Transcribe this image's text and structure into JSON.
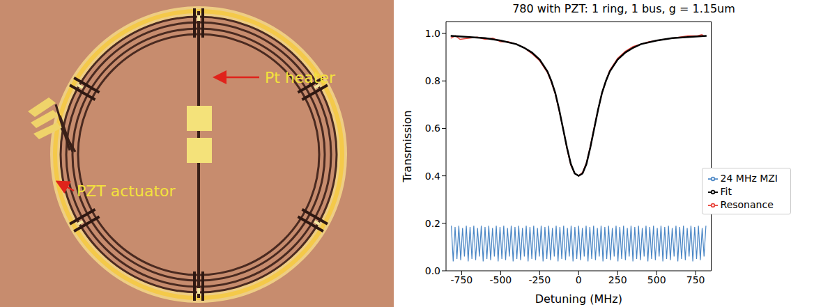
{
  "photo": {
    "labels": [
      "Pt heater",
      "PZT actuator"
    ]
  },
  "chart_data": {
    "type": "line",
    "title": "780 with PZT: 1 ring, 1 bus, g = 1.15um",
    "x_label": "Detuning (MHz)",
    "y_label": "Transmission",
    "xlim": [
      -850,
      850
    ],
    "ylim": [
      0,
      1.05
    ],
    "xticks": [
      -750,
      -500,
      -250,
      0,
      250,
      500,
      750
    ],
    "yticks": [
      {
        "value": 0,
        "label": "0.0"
      },
      0.2,
      0.4,
      0.6,
      0.8,
      {
        "value": 1,
        "label": "1.0"
      }
    ],
    "legend": "right",
    "series": [
      {
        "name": "Resonance",
        "color": "#e8453c",
        "x": [
          -820,
          -790,
          -760,
          -700,
          -650,
          -600,
          -550,
          -500,
          -450,
          -400,
          -350,
          -300,
          -250,
          -200,
          -175,
          -150,
          -125,
          -100,
          -75,
          -50,
          -25,
          0,
          25,
          50,
          75,
          100,
          125,
          150,
          175,
          200,
          250,
          300,
          350,
          400,
          450,
          500,
          550,
          600,
          650,
          700,
          760,
          790,
          800
        ],
        "values": [
          0.98,
          0.99,
          0.975,
          0.98,
          0.985,
          0.975,
          0.98,
          0.965,
          0.965,
          0.955,
          0.94,
          0.915,
          0.885,
          0.835,
          0.795,
          0.745,
          0.675,
          0.6,
          0.515,
          0.445,
          0.41,
          0.4,
          0.415,
          0.455,
          0.525,
          0.605,
          0.68,
          0.75,
          0.8,
          0.845,
          0.895,
          0.925,
          0.945,
          0.955,
          0.965,
          0.97,
          0.975,
          0.98,
          0.985,
          0.99,
          0.99,
          0.995,
          0.99
        ]
      },
      {
        "name": "24 MHz MZI",
        "color": "#4a86c5",
        "x": [
          -816,
          -804,
          -792,
          -780,
          -768,
          -756,
          -744,
          -732,
          -720,
          -708,
          -696,
          -684,
          -672,
          -660,
          -648,
          -636,
          -624,
          -612,
          -600,
          -588,
          -576,
          -564,
          -552,
          -540,
          -528,
          -516,
          -504,
          -492,
          -480,
          -468,
          -456,
          -444,
          -432,
          -420,
          -408,
          -396,
          -384,
          -372,
          -360,
          -348,
          -336,
          -324,
          -312,
          -300,
          -288,
          -276,
          -264,
          -252,
          -240,
          -228,
          -216,
          -204,
          -192,
          -180,
          -168,
          -156,
          -144,
          -132,
          -120,
          -108,
          -96,
          -84,
          -72,
          -60,
          -48,
          -36,
          -24,
          -12,
          0,
          12,
          24,
          36,
          48,
          60,
          72,
          84,
          96,
          108,
          120,
          132,
          144,
          156,
          168,
          180,
          192,
          204,
          216,
          228,
          240,
          252,
          264,
          276,
          288,
          300,
          312,
          324,
          336,
          348,
          360,
          372,
          384,
          396,
          408,
          420,
          432,
          444,
          456,
          468,
          480,
          492,
          504,
          516,
          528,
          540,
          552,
          564,
          576,
          588,
          600,
          612,
          624,
          636,
          648,
          660,
          672,
          684,
          696,
          708,
          720,
          732,
          744,
          756,
          768,
          780,
          792,
          804,
          816
        ],
        "values": [
          0.19,
          0.04,
          0.185,
          0.05,
          0.19,
          0.045,
          0.18,
          0.06,
          0.19,
          0.04,
          0.185,
          0.05,
          0.19,
          0.045,
          0.18,
          0.06,
          0.19,
          0.04,
          0.185,
          0.05,
          0.19,
          0.045,
          0.18,
          0.06,
          0.19,
          0.04,
          0.185,
          0.05,
          0.19,
          0.045,
          0.18,
          0.06,
          0.19,
          0.04,
          0.185,
          0.05,
          0.19,
          0.045,
          0.18,
          0.06,
          0.19,
          0.04,
          0.185,
          0.05,
          0.19,
          0.045,
          0.18,
          0.06,
          0.19,
          0.04,
          0.185,
          0.05,
          0.19,
          0.045,
          0.18,
          0.06,
          0.19,
          0.04,
          0.185,
          0.05,
          0.19,
          0.045,
          0.18,
          0.06,
          0.19,
          0.04,
          0.185,
          0.05,
          0.19,
          0.045,
          0.18,
          0.06,
          0.19,
          0.04,
          0.185,
          0.05,
          0.19,
          0.045,
          0.18,
          0.06,
          0.19,
          0.04,
          0.185,
          0.05,
          0.19,
          0.045,
          0.18,
          0.06,
          0.19,
          0.04,
          0.185,
          0.05,
          0.19,
          0.045,
          0.18,
          0.06,
          0.19,
          0.04,
          0.185,
          0.05,
          0.19,
          0.045,
          0.18,
          0.06,
          0.19,
          0.04,
          0.185,
          0.05,
          0.19,
          0.045,
          0.18,
          0.06,
          0.19,
          0.04,
          0.185,
          0.05,
          0.19,
          0.045,
          0.18,
          0.06,
          0.19,
          0.04,
          0.185,
          0.05,
          0.19,
          0.045,
          0.18,
          0.06,
          0.19,
          0.04,
          0.185,
          0.05,
          0.19,
          0.045,
          0.18,
          0.06,
          0.19
        ]
      },
      {
        "name": "Fit",
        "color": "#000000",
        "x": [
          -820,
          -700,
          -600,
          -500,
          -400,
          -350,
          -300,
          -250,
          -200,
          -175,
          -150,
          -125,
          -100,
          -75,
          -50,
          -25,
          0,
          25,
          50,
          75,
          100,
          125,
          150,
          175,
          200,
          250,
          300,
          350,
          400,
          500,
          600,
          700,
          820
        ],
        "values": [
          0.99,
          0.985,
          0.98,
          0.97,
          0.955,
          0.94,
          0.92,
          0.89,
          0.84,
          0.8,
          0.75,
          0.68,
          0.6,
          0.52,
          0.45,
          0.41,
          0.4,
          0.41,
          0.45,
          0.52,
          0.6,
          0.68,
          0.75,
          0.8,
          0.84,
          0.89,
          0.92,
          0.94,
          0.955,
          0.97,
          0.98,
          0.985,
          0.99
        ]
      }
    ]
  }
}
